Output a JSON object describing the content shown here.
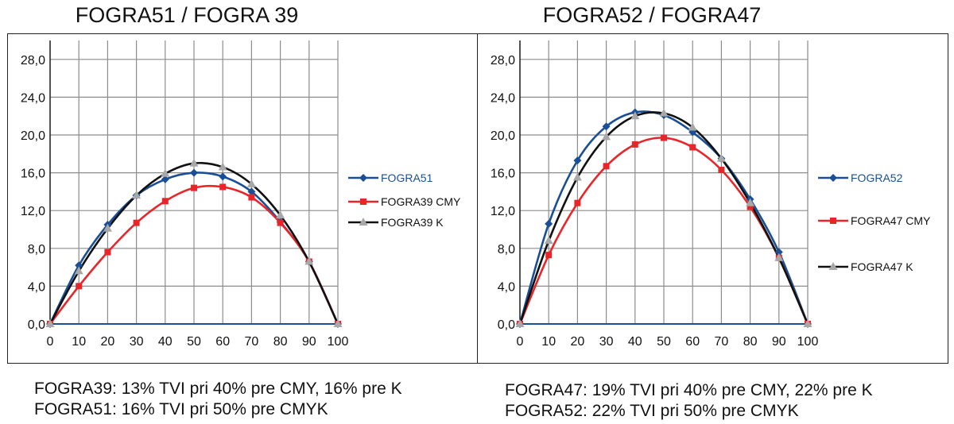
{
  "chart_data": [
    {
      "type": "line",
      "title": "FOGRA51 / FOGRA 39",
      "xlabel": "",
      "ylabel": "",
      "xlim": [
        0,
        100
      ],
      "ylim": [
        0,
        30
      ],
      "x_ticks": [
        "0",
        "10",
        "20",
        "30",
        "40",
        "50",
        "60",
        "70",
        "80",
        "90",
        "100"
      ],
      "y_ticks": [
        "0,0",
        "4,0",
        "8,0",
        "12,0",
        "16,0",
        "20,0",
        "24,0",
        "28,0"
      ],
      "grid": true,
      "legend_position": "right",
      "x": [
        0,
        10,
        20,
        30,
        40,
        50,
        60,
        70,
        80,
        90,
        100
      ],
      "series": [
        {
          "name": "FOGRA51",
          "color": "#1a4f96",
          "marker": "diamond",
          "values": [
            0,
            6.2,
            10.5,
            13.6,
            15.3,
            16.0,
            15.6,
            14.0,
            10.8,
            6.6,
            0
          ]
        },
        {
          "name": "FOGRA39 CMY",
          "color": "#e8262a",
          "marker": "square",
          "values": [
            0,
            4.0,
            7.6,
            10.7,
            13.0,
            14.4,
            14.5,
            13.4,
            10.7,
            6.6,
            0
          ]
        },
        {
          "name": "FOGRA39 K",
          "color": "#111111",
          "marker": "triangle",
          "values": [
            0,
            5.6,
            10.1,
            13.6,
            15.9,
            17.0,
            16.6,
            14.8,
            11.5,
            6.6,
            0
          ]
        }
      ]
    },
    {
      "type": "line",
      "title": "FOGRA52 / FOGRA47",
      "xlabel": "",
      "ylabel": "",
      "xlim": [
        0,
        100
      ],
      "ylim": [
        0,
        30
      ],
      "x_ticks": [
        "0",
        "10",
        "20",
        "30",
        "40",
        "50",
        "60",
        "70",
        "80",
        "90",
        "100"
      ],
      "y_ticks": [
        "0,0",
        "4,0",
        "8,0",
        "12,0",
        "16,0",
        "20,0",
        "24,0",
        "28,0"
      ],
      "grid": true,
      "legend_position": "right",
      "x": [
        0,
        10,
        20,
        30,
        40,
        50,
        60,
        70,
        80,
        90,
        100
      ],
      "series": [
        {
          "name": "FOGRA52",
          "color": "#1a4f96",
          "marker": "diamond",
          "values": [
            0,
            10.6,
            17.3,
            20.9,
            22.4,
            22.1,
            20.3,
            17.5,
            13.2,
            7.6,
            0
          ]
        },
        {
          "name": "FOGRA47 CMY",
          "color": "#e8262a",
          "marker": "square",
          "values": [
            0,
            7.3,
            12.8,
            16.7,
            19.0,
            19.7,
            18.7,
            16.3,
            12.4,
            7.0,
            0
          ]
        },
        {
          "name": "FOGRA47 K",
          "color": "#111111",
          "marker": "triangle",
          "values": [
            0,
            8.8,
            15.5,
            19.8,
            22.0,
            22.3,
            20.8,
            17.5,
            12.8,
            7.0,
            0
          ]
        }
      ]
    }
  ],
  "notes_left": [
    "FOGRA39: 13% TVI pri 40% pre CMY, 16% pre K",
    "FOGRA51: 16% TVI pri 50% pre CMYK"
  ],
  "notes_right": [
    "FOGRA47: 19% TVI pri 40% pre CMY, 22% pre K",
    "FOGRA52: 22% TVI pri 50% pre CMYK"
  ]
}
